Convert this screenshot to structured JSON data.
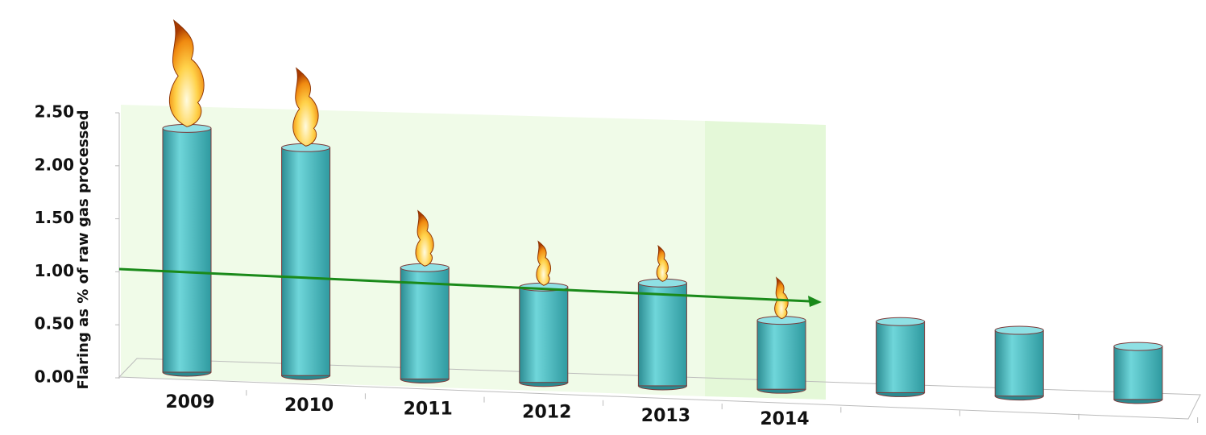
{
  "chart_data": {
    "type": "bar",
    "y_label": "Flaring as % of raw gas processed",
    "categories": [
      "2009",
      "2010",
      "2011",
      "2012",
      "2013",
      "2014",
      null,
      null,
      null
    ],
    "values": [
      2.3,
      2.15,
      1.05,
      0.9,
      0.97,
      0.65,
      0.67,
      0.62,
      0.5
    ],
    "color": "#5ec8cc",
    "ylim": [
      0,
      2.5
    ],
    "yticks": [
      {
        "value": 0,
        "label": "0.00"
      },
      {
        "value": 0.5,
        "label": "0.50"
      },
      {
        "value": 1,
        "label": "1.00"
      },
      {
        "value": 1.5,
        "label": "1.50"
      },
      {
        "value": 2,
        "label": "2.00"
      },
      {
        "value": 2.5,
        "label": "2.50"
      }
    ]
  }
}
